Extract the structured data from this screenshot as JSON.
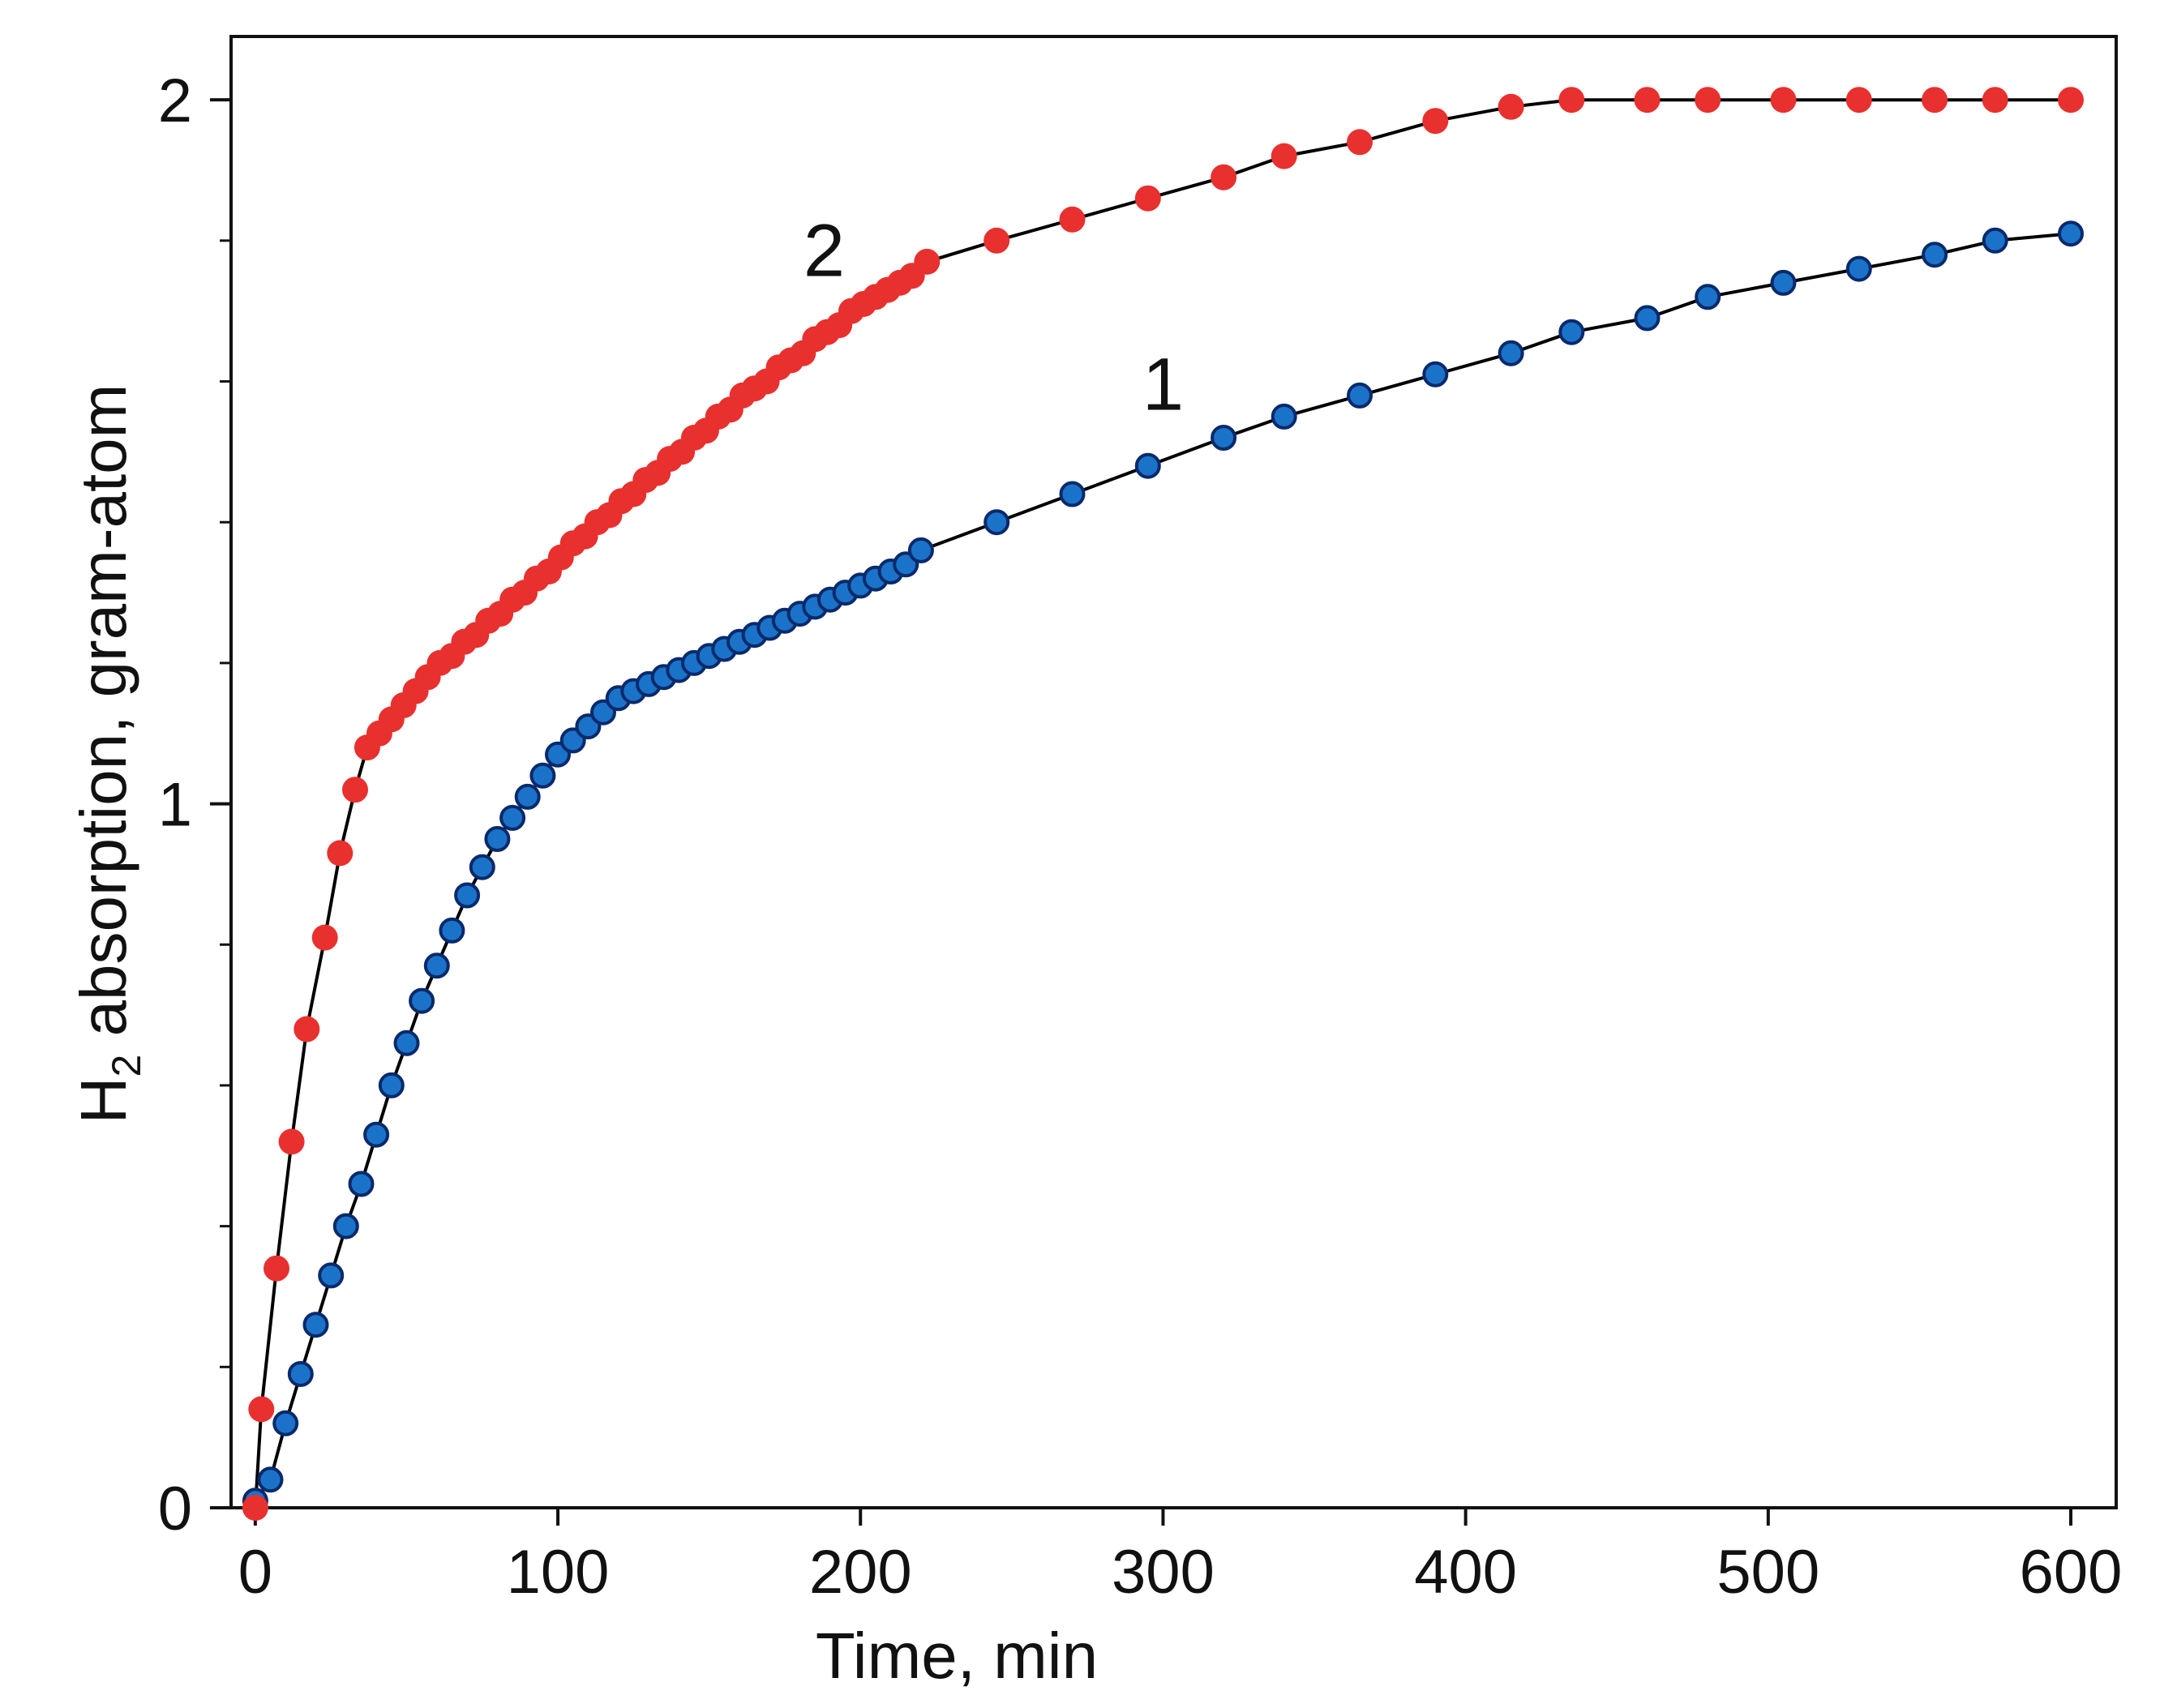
{
  "chart_data": {
    "type": "scatter",
    "title": "",
    "xlabel": "Time, min",
    "ylabel_parts": {
      "main": "H",
      "subscript": "2",
      "rest": " absorption, gram-atom"
    },
    "xlim": [
      -8,
      615
    ],
    "ylim": [
      0,
      2.09
    ],
    "x_ticks": [
      0,
      100,
      200,
      300,
      400,
      500,
      600
    ],
    "y_ticks": [
      0,
      1,
      2
    ],
    "y_minor_step": 0.2,
    "grid": false,
    "colors": {
      "series_1": "#1a73c9",
      "series_1_edge": "#0a2a6b",
      "series_2": "#e8302e",
      "line": "#000000"
    },
    "series": [
      {
        "name": "1",
        "marker": "circle-outlined",
        "points": [
          [
            0,
            0.01
          ],
          [
            5,
            0.04
          ],
          [
            10,
            0.12
          ],
          [
            15,
            0.19
          ],
          [
            20,
            0.26
          ],
          [
            25,
            0.33
          ],
          [
            30,
            0.4
          ],
          [
            35,
            0.46
          ],
          [
            40,
            0.53
          ],
          [
            45,
            0.6
          ],
          [
            50,
            0.66
          ],
          [
            55,
            0.72
          ],
          [
            60,
            0.77
          ],
          [
            65,
            0.82
          ],
          [
            70,
            0.87
          ],
          [
            75,
            0.91
          ],
          [
            80,
            0.95
          ],
          [
            85,
            0.98
          ],
          [
            90,
            1.01
          ],
          [
            95,
            1.04
          ],
          [
            100,
            1.07
          ],
          [
            105,
            1.09
          ],
          [
            110,
            1.11
          ],
          [
            115,
            1.13
          ],
          [
            120,
            1.15
          ],
          [
            125,
            1.16
          ],
          [
            130,
            1.17
          ],
          [
            135,
            1.18
          ],
          [
            140,
            1.19
          ],
          [
            145,
            1.2
          ],
          [
            150,
            1.21
          ],
          [
            155,
            1.22
          ],
          [
            160,
            1.23
          ],
          [
            165,
            1.24
          ],
          [
            170,
            1.25
          ],
          [
            175,
            1.26
          ],
          [
            180,
            1.27
          ],
          [
            185,
            1.28
          ],
          [
            190,
            1.29
          ],
          [
            195,
            1.3
          ],
          [
            200,
            1.31
          ],
          [
            205,
            1.32
          ],
          [
            210,
            1.33
          ],
          [
            215,
            1.34
          ],
          [
            220,
            1.36
          ],
          [
            245,
            1.4
          ],
          [
            270,
            1.44
          ],
          [
            295,
            1.48
          ],
          [
            320,
            1.52
          ],
          [
            340,
            1.55
          ],
          [
            365,
            1.58
          ],
          [
            390,
            1.61
          ],
          [
            415,
            1.64
          ],
          [
            435,
            1.67
          ],
          [
            460,
            1.69
          ],
          [
            480,
            1.72
          ],
          [
            505,
            1.74
          ],
          [
            530,
            1.76
          ],
          [
            555,
            1.78
          ],
          [
            575,
            1.8
          ],
          [
            600,
            1.81
          ]
        ]
      },
      {
        "name": "2",
        "marker": "circle",
        "points": [
          [
            0,
            0.0
          ],
          [
            2,
            0.14
          ],
          [
            7,
            0.34
          ],
          [
            12,
            0.52
          ],
          [
            17,
            0.68
          ],
          [
            23,
            0.81
          ],
          [
            28,
            0.93
          ],
          [
            33,
            1.02
          ],
          [
            37,
            1.08
          ],
          [
            41,
            1.1
          ],
          [
            45,
            1.12
          ],
          [
            49,
            1.14
          ],
          [
            53,
            1.16
          ],
          [
            57,
            1.18
          ],
          [
            61,
            1.2
          ],
          [
            65,
            1.21
          ],
          [
            69,
            1.23
          ],
          [
            73,
            1.24
          ],
          [
            77,
            1.26
          ],
          [
            81,
            1.27
          ],
          [
            85,
            1.29
          ],
          [
            89,
            1.3
          ],
          [
            93,
            1.32
          ],
          [
            97,
            1.33
          ],
          [
            101,
            1.35
          ],
          [
            105,
            1.37
          ],
          [
            109,
            1.38
          ],
          [
            113,
            1.4
          ],
          [
            117,
            1.41
          ],
          [
            121,
            1.43
          ],
          [
            125,
            1.44
          ],
          [
            129,
            1.46
          ],
          [
            133,
            1.47
          ],
          [
            137,
            1.49
          ],
          [
            141,
            1.5
          ],
          [
            145,
            1.52
          ],
          [
            149,
            1.53
          ],
          [
            153,
            1.55
          ],
          [
            157,
            1.56
          ],
          [
            161,
            1.58
          ],
          [
            165,
            1.59
          ],
          [
            169,
            1.6
          ],
          [
            173,
            1.62
          ],
          [
            177,
            1.63
          ],
          [
            181,
            1.64
          ],
          [
            185,
            1.66
          ],
          [
            189,
            1.67
          ],
          [
            193,
            1.68
          ],
          [
            197,
            1.7
          ],
          [
            201,
            1.71
          ],
          [
            205,
            1.72
          ],
          [
            209,
            1.73
          ],
          [
            213,
            1.74
          ],
          [
            217,
            1.75
          ],
          [
            222,
            1.77
          ],
          [
            245,
            1.8
          ],
          [
            270,
            1.83
          ],
          [
            295,
            1.86
          ],
          [
            320,
            1.89
          ],
          [
            340,
            1.92
          ],
          [
            365,
            1.94
          ],
          [
            390,
            1.97
          ],
          [
            415,
            1.99
          ],
          [
            435,
            2.0
          ],
          [
            460,
            2.0
          ],
          [
            480,
            2.0
          ],
          [
            505,
            2.0
          ],
          [
            530,
            2.0
          ],
          [
            555,
            2.0
          ],
          [
            575,
            2.0
          ],
          [
            600,
            2.0
          ]
        ]
      }
    ],
    "curve_labels": [
      {
        "text": "2",
        "x": 188,
        "y": 1.75
      },
      {
        "text": "1",
        "x": 300,
        "y": 1.56
      }
    ]
  }
}
